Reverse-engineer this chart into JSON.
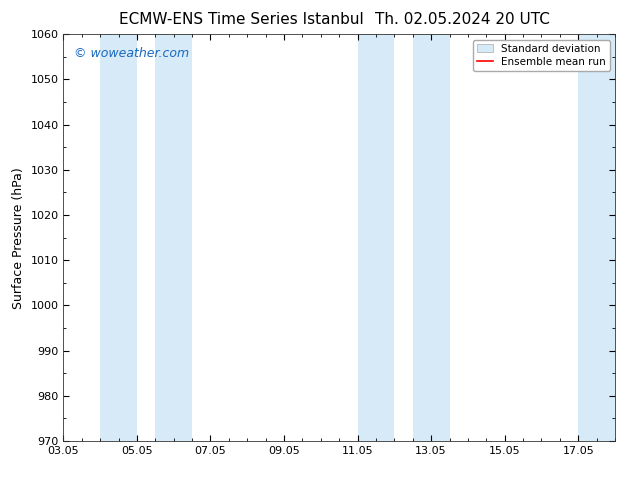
{
  "title_left": "ECMW-ENS Time Series Istanbul",
  "title_right": "Th. 02.05.2024 20 UTC",
  "ylabel": "Surface Pressure (hPa)",
  "ylim": [
    970,
    1060
  ],
  "yticks": [
    970,
    980,
    990,
    1000,
    1010,
    1020,
    1030,
    1040,
    1050,
    1060
  ],
  "xlim": [
    0,
    15
  ],
  "xtick_labels": [
    "03.05",
    "05.05",
    "07.05",
    "09.05",
    "11.05",
    "13.05",
    "15.05",
    "17.05"
  ],
  "xtick_positions": [
    0,
    2,
    4,
    6,
    8,
    10,
    12,
    14
  ],
  "shaded_bands": [
    {
      "x_start": 1.0,
      "x_end": 2.0,
      "color": "#d6eaf8"
    },
    {
      "x_start": 2.5,
      "x_end": 3.5,
      "color": "#d6eaf8"
    },
    {
      "x_start": 8.0,
      "x_end": 9.0,
      "color": "#d6eaf8"
    },
    {
      "x_start": 9.5,
      "x_end": 10.5,
      "color": "#d6eaf8"
    },
    {
      "x_start": 14.0,
      "x_end": 15.0,
      "color": "#d6eaf8"
    }
  ],
  "watermark_text": "© woweather.com",
  "watermark_color": "#1a6abf",
  "background_color": "#ffffff",
  "plot_bg_color": "#ffffff",
  "legend_std_label": "Standard deviation",
  "legend_mean_label": "Ensemble mean run",
  "legend_mean_color": "#ff0000",
  "title_fontsize": 11,
  "axis_label_fontsize": 9,
  "tick_fontsize": 8,
  "watermark_fontsize": 9,
  "minor_tick_interval": 0.5
}
